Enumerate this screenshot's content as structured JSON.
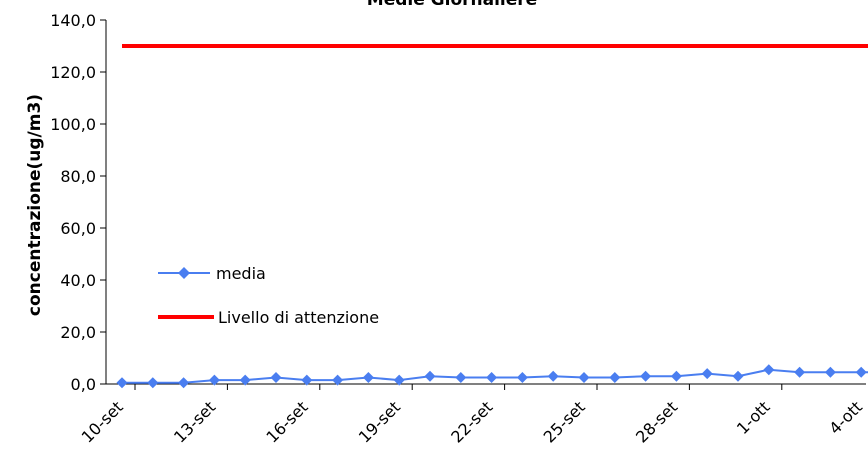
{
  "chart_data": {
    "type": "line",
    "title": "Medie Giornaliere",
    "xlabel": "",
    "ylabel": "concentrazione(ug/m3)",
    "ylim": [
      0,
      140
    ],
    "y_ticks": [
      "0,0",
      "20,0",
      "40,0",
      "60,0",
      "80,0",
      "100,0",
      "120,0",
      "140,0"
    ],
    "y_tick_values": [
      0,
      20,
      40,
      60,
      80,
      100,
      120,
      140
    ],
    "x_tick_labels": [
      "10-set",
      "13-set",
      "16-set",
      "19-set",
      "22-set",
      "25-set",
      "28-set",
      "1-ott",
      "4-ott"
    ],
    "x_tick_indices": [
      0,
      3,
      6,
      9,
      12,
      15,
      18,
      21,
      24
    ],
    "categories": [
      "10-set",
      "11-set",
      "12-set",
      "13-set",
      "14-set",
      "15-set",
      "16-set",
      "17-set",
      "18-set",
      "19-set",
      "20-set",
      "21-set",
      "22-set",
      "23-set",
      "24-set",
      "25-set",
      "26-set",
      "27-set",
      "28-set",
      "29-set",
      "30-set",
      "1-ott",
      "2-ott",
      "3-ott",
      "4-ott",
      "5-ott"
    ],
    "grid": false,
    "legend_position": "left",
    "series": [
      {
        "name": "media",
        "color": "#4a7ef0",
        "marker": "diamond",
        "values": [
          0.5,
          0.5,
          0.5,
          1.5,
          1.5,
          2.5,
          1.5,
          1.5,
          2.5,
          1.5,
          3.0,
          2.5,
          2.5,
          2.5,
          3.0,
          2.5,
          2.5,
          3.0,
          3.0,
          4.0,
          3.0,
          5.5,
          4.5,
          4.5,
          4.5,
          4.5
        ]
      },
      {
        "name": "Livello di attenzione",
        "color": "#ff0000",
        "marker": "none",
        "values": [
          130,
          130,
          130,
          130,
          130,
          130,
          130,
          130,
          130,
          130,
          130,
          130,
          130,
          130,
          130,
          130,
          130,
          130,
          130,
          130,
          130,
          130,
          130,
          130,
          130,
          130
        ]
      }
    ]
  }
}
